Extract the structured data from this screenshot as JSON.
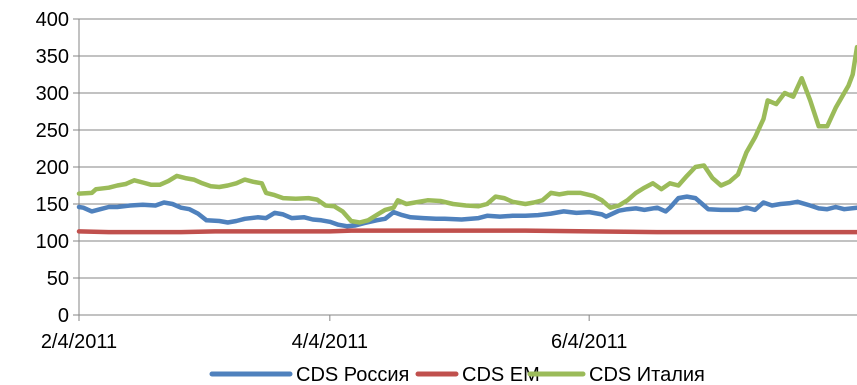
{
  "chart_data": {
    "type": "line",
    "title": "",
    "xlabel": "",
    "ylabel": "",
    "ylim": [
      0,
      400
    ],
    "yticks": [
      "0",
      "50",
      "100",
      "150",
      "200",
      "250",
      "300",
      "350",
      "400"
    ],
    "xlim": [
      "2/4/2011",
      "8/6/2011"
    ],
    "xticks": [
      {
        "date": "2/4/2011",
        "label": "2/4/2011"
      },
      {
        "date": "4/4/2011",
        "label": "4/4/2011"
      },
      {
        "date": "6/4/2011",
        "label": "6/4/2011"
      }
    ],
    "grid": "horizontal",
    "legend_position": "bottom",
    "series": [
      {
        "name": "CDS Россия",
        "color": "#4F81BD",
        "points": [
          [
            "2/4/2011",
            146
          ],
          [
            "2/5/2011",
            145
          ],
          [
            "2/7/2011",
            140
          ],
          [
            "2/9/2011",
            143
          ],
          [
            "2/11/2011",
            146
          ],
          [
            "2/13/2011",
            146
          ],
          [
            "2/16/2011",
            148
          ],
          [
            "2/19/2011",
            149
          ],
          [
            "2/22/2011",
            148
          ],
          [
            "2/24/2011",
            152
          ],
          [
            "2/26/2011",
            150
          ],
          [
            "2/28/2011",
            145
          ],
          [
            "3/2/2011",
            143
          ],
          [
            "3/4/2011",
            137
          ],
          [
            "3/6/2011",
            128
          ],
          [
            "3/9/2011",
            127
          ],
          [
            "3/11/2011",
            125
          ],
          [
            "3/13/2011",
            127
          ],
          [
            "3/15/2011",
            130
          ],
          [
            "3/18/2011",
            132
          ],
          [
            "3/20/2011",
            131
          ],
          [
            "3/22/2011",
            138
          ],
          [
            "3/24/2011",
            136
          ],
          [
            "3/26/2011",
            131
          ],
          [
            "3/29/2011",
            132
          ],
          [
            "3/31/2011",
            129
          ],
          [
            "4/2/2011",
            128
          ],
          [
            "4/4/2011",
            126
          ],
          [
            "4/6/2011",
            122
          ],
          [
            "4/8/2011",
            120
          ],
          [
            "4/10/2011",
            121
          ],
          [
            "4/12/2011",
            124
          ],
          [
            "4/15/2011",
            128
          ],
          [
            "4/17/2011",
            130
          ],
          [
            "4/19/2011",
            139
          ],
          [
            "4/21/2011",
            135
          ],
          [
            "4/23/2011",
            132
          ],
          [
            "4/26/2011",
            131
          ],
          [
            "4/29/2011",
            130
          ],
          [
            "5/1/2011",
            130
          ],
          [
            "5/5/2011",
            129
          ],
          [
            "5/9/2011",
            131
          ],
          [
            "5/11/2011",
            134
          ],
          [
            "5/14/2011",
            133
          ],
          [
            "5/17/2011",
            134
          ],
          [
            "5/20/2011",
            134
          ],
          [
            "5/23/2011",
            135
          ],
          [
            "5/26/2011",
            137
          ],
          [
            "5/29/2011",
            140
          ],
          [
            "6/1/2011",
            138
          ],
          [
            "6/4/2011",
            139
          ],
          [
            "6/7/2011",
            136
          ],
          [
            "6/8/2011",
            133
          ],
          [
            "6/11/2011",
            141
          ],
          [
            "6/13/2011",
            143
          ],
          [
            "6/15/2011",
            144
          ],
          [
            "6/17/2011",
            142
          ],
          [
            "6/20/2011",
            145
          ],
          [
            "6/22/2011",
            140
          ],
          [
            "6/23/2011",
            145
          ],
          [
            "6/25/2011",
            158
          ],
          [
            "6/27/2011",
            160
          ],
          [
            "6/29/2011",
            158
          ],
          [
            "7/1/2011",
            148
          ],
          [
            "7/2/2011",
            143
          ],
          [
            "7/5/2011",
            142
          ],
          [
            "7/9/2011",
            142
          ],
          [
            "7/11/2011",
            145
          ],
          [
            "7/13/2011",
            142
          ],
          [
            "7/15/2011",
            152
          ],
          [
            "7/17/2011",
            148
          ],
          [
            "7/19/2011",
            150
          ],
          [
            "7/21/2011",
            151
          ],
          [
            "7/23/2011",
            153
          ],
          [
            "7/26/2011",
            148
          ],
          [
            "7/28/2011",
            144
          ],
          [
            "7/30/2011",
            143
          ],
          [
            "8/1/2011",
            146
          ],
          [
            "8/3/2011",
            143
          ],
          [
            "8/6/2011",
            145
          ]
        ]
      },
      {
        "name": "CDS EM",
        "color": "#C0504D",
        "points": [
          [
            "2/4/2011",
            113
          ],
          [
            "2/11/2011",
            112
          ],
          [
            "2/28/2011",
            112
          ],
          [
            "3/8/2011",
            113
          ],
          [
            "3/20/2011",
            113
          ],
          [
            "3/29/2011",
            113
          ],
          [
            "4/4/2011",
            113
          ],
          [
            "4/9/2011",
            114
          ],
          [
            "4/19/2011",
            114
          ],
          [
            "5/5/2011",
            114
          ],
          [
            "5/20/2011",
            114
          ],
          [
            "6/4/2011",
            113
          ],
          [
            "6/20/2011",
            112
          ],
          [
            "7/5/2011",
            112
          ],
          [
            "7/21/2011",
            112
          ],
          [
            "8/6/2011",
            112
          ]
        ]
      },
      {
        "name": "CDS Италия",
        "color": "#9BBB59",
        "points": [
          [
            "2/4/2011",
            164
          ],
          [
            "2/7/2011",
            165
          ],
          [
            "2/8/2011",
            170
          ],
          [
            "2/11/2011",
            172
          ],
          [
            "2/13/2011",
            175
          ],
          [
            "2/15/2011",
            177
          ],
          [
            "2/17/2011",
            182
          ],
          [
            "2/19/2011",
            179
          ],
          [
            "2/21/2011",
            176
          ],
          [
            "2/23/2011",
            176
          ],
          [
            "2/25/2011",
            181
          ],
          [
            "2/27/2011",
            188
          ],
          [
            "3/1/2011",
            185
          ],
          [
            "3/3/2011",
            183
          ],
          [
            "3/5/2011",
            178
          ],
          [
            "3/7/2011",
            174
          ],
          [
            "3/9/2011",
            173
          ],
          [
            "3/11/2011",
            175
          ],
          [
            "3/13/2011",
            178
          ],
          [
            "3/15/2011",
            183
          ],
          [
            "3/17/2011",
            180
          ],
          [
            "3/19/2011",
            178
          ],
          [
            "3/20/2011",
            165
          ],
          [
            "3/22/2011",
            162
          ],
          [
            "3/24/2011",
            158
          ],
          [
            "3/27/2011",
            157
          ],
          [
            "3/30/2011",
            158
          ],
          [
            "4/1/2011",
            156
          ],
          [
            "4/3/2011",
            148
          ],
          [
            "4/5/2011",
            147
          ],
          [
            "4/7/2011",
            140
          ],
          [
            "4/9/2011",
            127
          ],
          [
            "4/11/2011",
            125
          ],
          [
            "4/13/2011",
            128
          ],
          [
            "4/15/2011",
            135
          ],
          [
            "4/17/2011",
            142
          ],
          [
            "4/19/2011",
            145
          ],
          [
            "4/20/2011",
            155
          ],
          [
            "4/22/2011",
            150
          ],
          [
            "4/24/2011",
            152
          ],
          [
            "4/27/2011",
            155
          ],
          [
            "4/30/2011",
            154
          ],
          [
            "5/3/2011",
            150
          ],
          [
            "5/6/2011",
            148
          ],
          [
            "5/9/2011",
            147
          ],
          [
            "5/11/2011",
            150
          ],
          [
            "5/13/2011",
            160
          ],
          [
            "5/15/2011",
            158
          ],
          [
            "5/17/2011",
            153
          ],
          [
            "5/20/2011",
            150
          ],
          [
            "5/22/2011",
            152
          ],
          [
            "5/24/2011",
            155
          ],
          [
            "5/26/2011",
            165
          ],
          [
            "5/28/2011",
            163
          ],
          [
            "5/30/2011",
            165
          ],
          [
            "6/2/2011",
            165
          ],
          [
            "6/5/2011",
            161
          ],
          [
            "6/7/2011",
            155
          ],
          [
            "6/9/2011",
            145
          ],
          [
            "6/11/2011",
            148
          ],
          [
            "6/13/2011",
            155
          ],
          [
            "6/15/2011",
            165
          ],
          [
            "6/17/2011",
            172
          ],
          [
            "6/19/2011",
            178
          ],
          [
            "6/21/2011",
            170
          ],
          [
            "6/23/2011",
            178
          ],
          [
            "6/25/2011",
            175
          ],
          [
            "6/27/2011",
            188
          ],
          [
            "6/29/2011",
            200
          ],
          [
            "7/1/2011",
            202
          ],
          [
            "7/3/2011",
            185
          ],
          [
            "7/5/2011",
            175
          ],
          [
            "7/7/2011",
            180
          ],
          [
            "7/9/2011",
            190
          ],
          [
            "7/11/2011",
            220
          ],
          [
            "7/13/2011",
            240
          ],
          [
            "7/15/2011",
            265
          ],
          [
            "7/16/2011",
            290
          ],
          [
            "7/18/2011",
            285
          ],
          [
            "7/20/2011",
            300
          ],
          [
            "7/22/2011",
            295
          ],
          [
            "7/24/2011",
            320
          ],
          [
            "7/26/2011",
            290
          ],
          [
            "7/28/2011",
            255
          ],
          [
            "7/30/2011",
            255
          ],
          [
            "8/1/2011",
            280
          ],
          [
            "8/3/2011",
            300
          ],
          [
            "8/4/2011",
            310
          ],
          [
            "8/5/2011",
            325
          ],
          [
            "8/6/2011",
            362
          ]
        ]
      }
    ]
  }
}
